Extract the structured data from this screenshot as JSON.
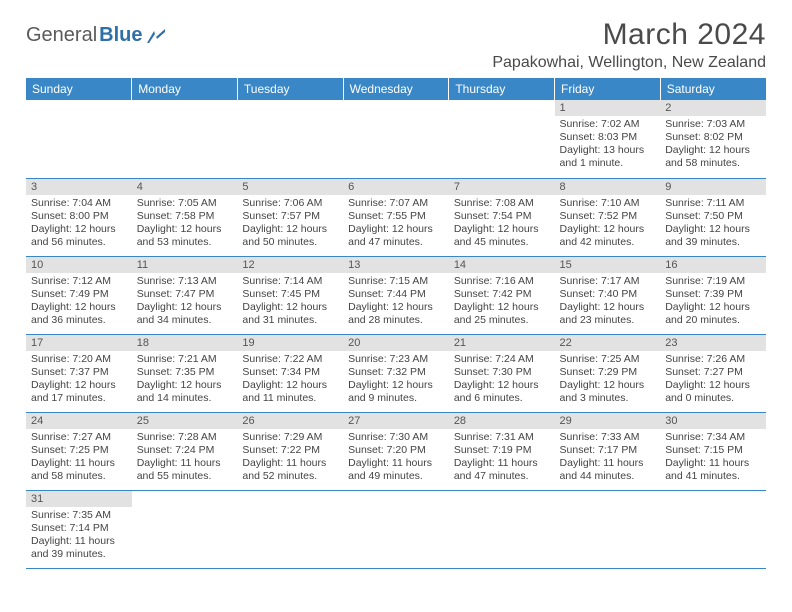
{
  "brand": {
    "part1": "General",
    "part2": "Blue"
  },
  "title": "March 2024",
  "location": "Papakowhai, Wellington, New Zealand",
  "colors": {
    "header_bg": "#3a87c7",
    "header_text": "#ffffff",
    "daynum_bg": "#e2e2e2",
    "text": "#444444",
    "rule": "#3a87c7"
  },
  "weekdays": [
    "Sunday",
    "Monday",
    "Tuesday",
    "Wednesday",
    "Thursday",
    "Friday",
    "Saturday"
  ],
  "weeks": [
    [
      null,
      null,
      null,
      null,
      null,
      {
        "n": "1",
        "sr": "Sunrise: 7:02 AM",
        "ss": "Sunset: 8:03 PM",
        "dl": "Daylight: 13 hours and 1 minute."
      },
      {
        "n": "2",
        "sr": "Sunrise: 7:03 AM",
        "ss": "Sunset: 8:02 PM",
        "dl": "Daylight: 12 hours and 58 minutes."
      }
    ],
    [
      {
        "n": "3",
        "sr": "Sunrise: 7:04 AM",
        "ss": "Sunset: 8:00 PM",
        "dl": "Daylight: 12 hours and 56 minutes."
      },
      {
        "n": "4",
        "sr": "Sunrise: 7:05 AM",
        "ss": "Sunset: 7:58 PM",
        "dl": "Daylight: 12 hours and 53 minutes."
      },
      {
        "n": "5",
        "sr": "Sunrise: 7:06 AM",
        "ss": "Sunset: 7:57 PM",
        "dl": "Daylight: 12 hours and 50 minutes."
      },
      {
        "n": "6",
        "sr": "Sunrise: 7:07 AM",
        "ss": "Sunset: 7:55 PM",
        "dl": "Daylight: 12 hours and 47 minutes."
      },
      {
        "n": "7",
        "sr": "Sunrise: 7:08 AM",
        "ss": "Sunset: 7:54 PM",
        "dl": "Daylight: 12 hours and 45 minutes."
      },
      {
        "n": "8",
        "sr": "Sunrise: 7:10 AM",
        "ss": "Sunset: 7:52 PM",
        "dl": "Daylight: 12 hours and 42 minutes."
      },
      {
        "n": "9",
        "sr": "Sunrise: 7:11 AM",
        "ss": "Sunset: 7:50 PM",
        "dl": "Daylight: 12 hours and 39 minutes."
      }
    ],
    [
      {
        "n": "10",
        "sr": "Sunrise: 7:12 AM",
        "ss": "Sunset: 7:49 PM",
        "dl": "Daylight: 12 hours and 36 minutes."
      },
      {
        "n": "11",
        "sr": "Sunrise: 7:13 AM",
        "ss": "Sunset: 7:47 PM",
        "dl": "Daylight: 12 hours and 34 minutes."
      },
      {
        "n": "12",
        "sr": "Sunrise: 7:14 AM",
        "ss": "Sunset: 7:45 PM",
        "dl": "Daylight: 12 hours and 31 minutes."
      },
      {
        "n": "13",
        "sr": "Sunrise: 7:15 AM",
        "ss": "Sunset: 7:44 PM",
        "dl": "Daylight: 12 hours and 28 minutes."
      },
      {
        "n": "14",
        "sr": "Sunrise: 7:16 AM",
        "ss": "Sunset: 7:42 PM",
        "dl": "Daylight: 12 hours and 25 minutes."
      },
      {
        "n": "15",
        "sr": "Sunrise: 7:17 AM",
        "ss": "Sunset: 7:40 PM",
        "dl": "Daylight: 12 hours and 23 minutes."
      },
      {
        "n": "16",
        "sr": "Sunrise: 7:19 AM",
        "ss": "Sunset: 7:39 PM",
        "dl": "Daylight: 12 hours and 20 minutes."
      }
    ],
    [
      {
        "n": "17",
        "sr": "Sunrise: 7:20 AM",
        "ss": "Sunset: 7:37 PM",
        "dl": "Daylight: 12 hours and 17 minutes."
      },
      {
        "n": "18",
        "sr": "Sunrise: 7:21 AM",
        "ss": "Sunset: 7:35 PM",
        "dl": "Daylight: 12 hours and 14 minutes."
      },
      {
        "n": "19",
        "sr": "Sunrise: 7:22 AM",
        "ss": "Sunset: 7:34 PM",
        "dl": "Daylight: 12 hours and 11 minutes."
      },
      {
        "n": "20",
        "sr": "Sunrise: 7:23 AM",
        "ss": "Sunset: 7:32 PM",
        "dl": "Daylight: 12 hours and 9 minutes."
      },
      {
        "n": "21",
        "sr": "Sunrise: 7:24 AM",
        "ss": "Sunset: 7:30 PM",
        "dl": "Daylight: 12 hours and 6 minutes."
      },
      {
        "n": "22",
        "sr": "Sunrise: 7:25 AM",
        "ss": "Sunset: 7:29 PM",
        "dl": "Daylight: 12 hours and 3 minutes."
      },
      {
        "n": "23",
        "sr": "Sunrise: 7:26 AM",
        "ss": "Sunset: 7:27 PM",
        "dl": "Daylight: 12 hours and 0 minutes."
      }
    ],
    [
      {
        "n": "24",
        "sr": "Sunrise: 7:27 AM",
        "ss": "Sunset: 7:25 PM",
        "dl": "Daylight: 11 hours and 58 minutes."
      },
      {
        "n": "25",
        "sr": "Sunrise: 7:28 AM",
        "ss": "Sunset: 7:24 PM",
        "dl": "Daylight: 11 hours and 55 minutes."
      },
      {
        "n": "26",
        "sr": "Sunrise: 7:29 AM",
        "ss": "Sunset: 7:22 PM",
        "dl": "Daylight: 11 hours and 52 minutes."
      },
      {
        "n": "27",
        "sr": "Sunrise: 7:30 AM",
        "ss": "Sunset: 7:20 PM",
        "dl": "Daylight: 11 hours and 49 minutes."
      },
      {
        "n": "28",
        "sr": "Sunrise: 7:31 AM",
        "ss": "Sunset: 7:19 PM",
        "dl": "Daylight: 11 hours and 47 minutes."
      },
      {
        "n": "29",
        "sr": "Sunrise: 7:33 AM",
        "ss": "Sunset: 7:17 PM",
        "dl": "Daylight: 11 hours and 44 minutes."
      },
      {
        "n": "30",
        "sr": "Sunrise: 7:34 AM",
        "ss": "Sunset: 7:15 PM",
        "dl": "Daylight: 11 hours and 41 minutes."
      }
    ],
    [
      {
        "n": "31",
        "sr": "Sunrise: 7:35 AM",
        "ss": "Sunset: 7:14 PM",
        "dl": "Daylight: 11 hours and 39 minutes."
      },
      null,
      null,
      null,
      null,
      null,
      null
    ]
  ]
}
